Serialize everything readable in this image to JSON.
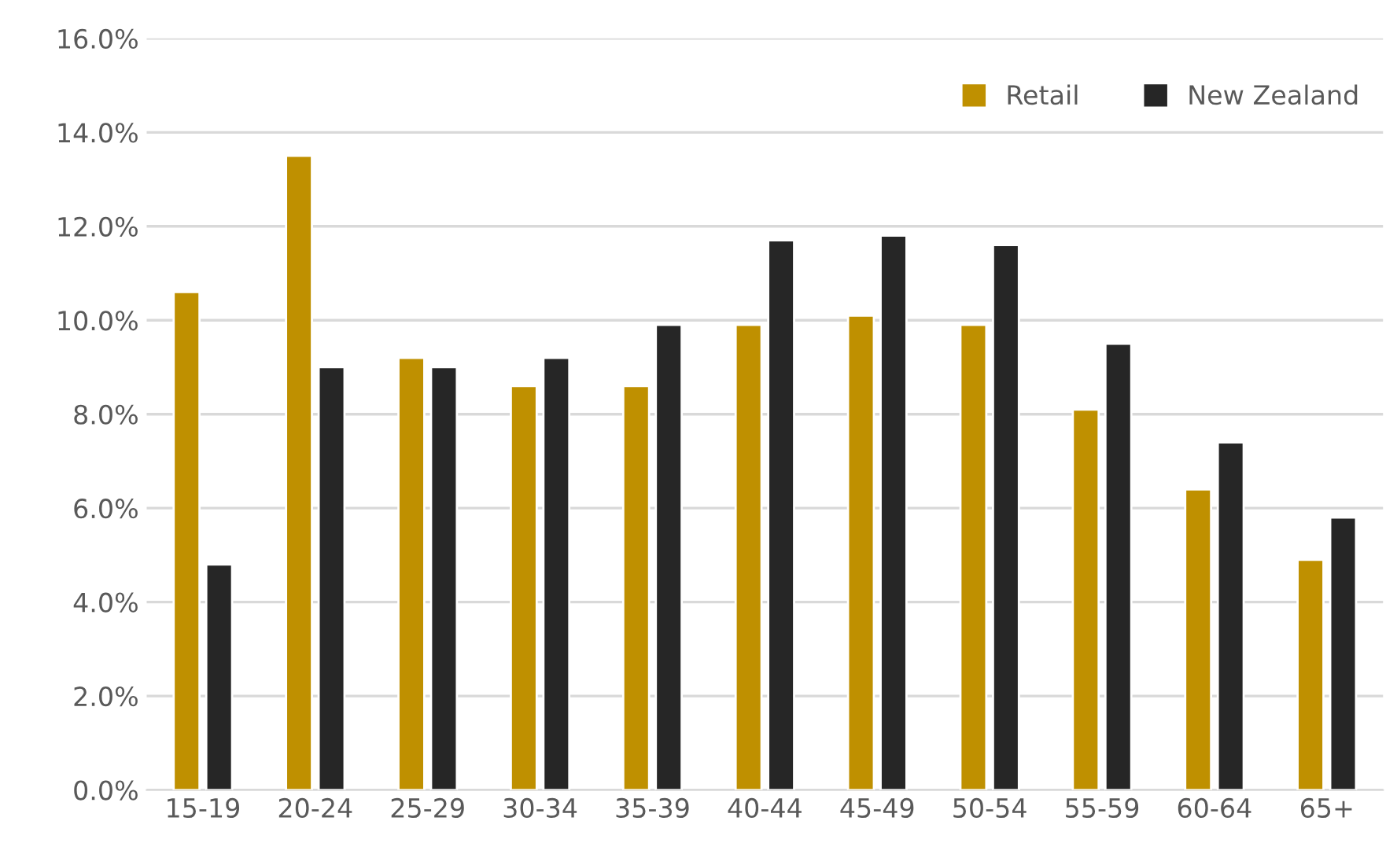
{
  "chart_data": {
    "type": "bar",
    "categories": [
      "15-19",
      "20-24",
      "25-29",
      "30-34",
      "35-39",
      "40-44",
      "45-49",
      "50-54",
      "55-59",
      "60-64",
      "65+"
    ],
    "series": [
      {
        "name": "Retail",
        "color": "#bf9000",
        "values": [
          10.6,
          13.5,
          9.2,
          8.6,
          8.6,
          9.9,
          10.1,
          9.9,
          8.1,
          6.4,
          4.9
        ]
      },
      {
        "name": "New Zealand",
        "color": "#262626",
        "values": [
          4.8,
          9.0,
          9.0,
          9.2,
          9.9,
          11.7,
          11.8,
          11.6,
          9.5,
          7.4,
          5.8
        ]
      }
    ],
    "ylim": [
      0,
      16
    ],
    "yticks": [
      {
        "value": 0,
        "label": "0.0%"
      },
      {
        "value": 2,
        "label": "2.0%"
      },
      {
        "value": 4,
        "label": "4.0%"
      },
      {
        "value": 6,
        "label": "6.0%"
      },
      {
        "value": 8,
        "label": "8.0%"
      },
      {
        "value": 10,
        "label": "10.0%"
      },
      {
        "value": 12,
        "label": "12.0%"
      },
      {
        "value": 14,
        "label": "14.0%"
      },
      {
        "value": 16,
        "label": "16.0%"
      }
    ],
    "grid": "y",
    "legend": "top right"
  }
}
